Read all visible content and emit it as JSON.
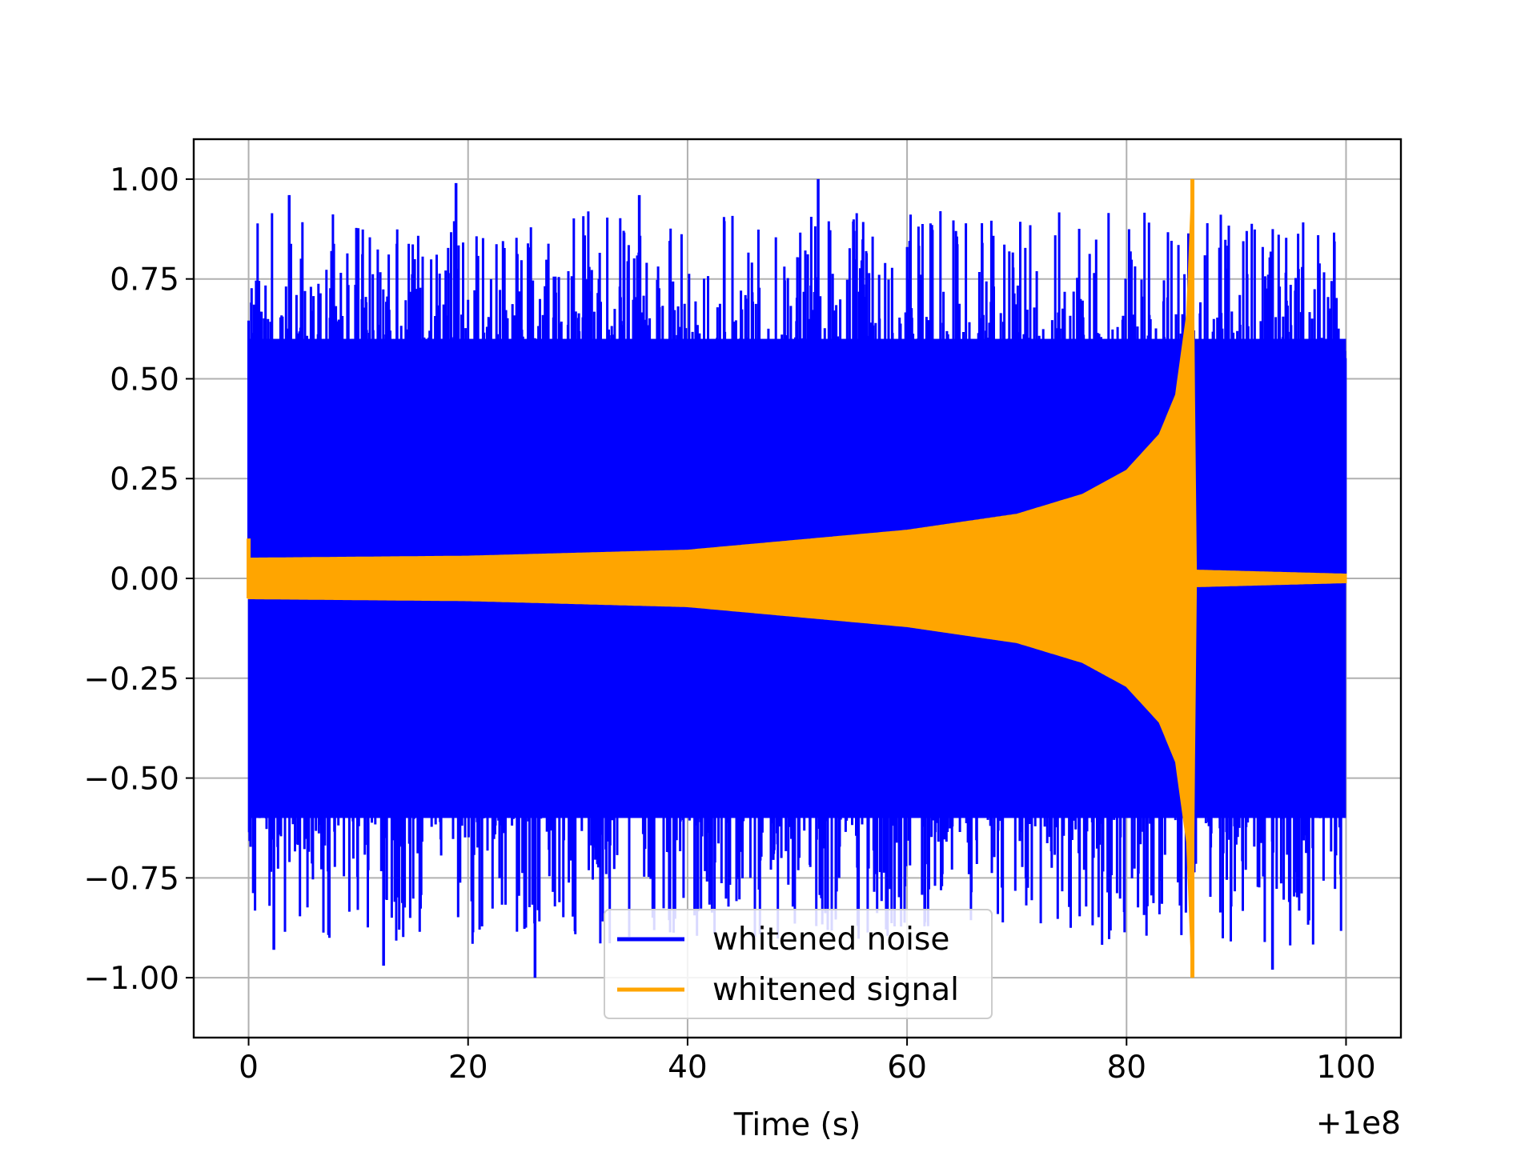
{
  "chart_data": {
    "type": "line",
    "title": "",
    "xlabel": "Time (s)",
    "ylabel": "",
    "x_offset_label": "+1e8",
    "xlim": [
      -5,
      105
    ],
    "ylim": [
      -1.15,
      1.1
    ],
    "x_ticks": [
      0,
      20,
      40,
      60,
      80,
      100
    ],
    "x_tick_labels": [
      "0",
      "20",
      "40",
      "60",
      "80",
      "100"
    ],
    "y_ticks": [
      1.0,
      0.75,
      0.5,
      0.25,
      0.0,
      -0.25,
      -0.5,
      -0.75,
      -1.0
    ],
    "y_tick_labels": [
      "1.00",
      "0.75",
      "0.50",
      "0.25",
      "0.00",
      "−0.25",
      "−0.50",
      "−0.75",
      "−1.00"
    ],
    "grid": true,
    "legend_position": "bottom-center",
    "series": [
      {
        "name": "whitened noise",
        "color": "#0000ff",
        "x_start": 0,
        "x_end": 100,
        "envelope_note": "dense noise, mostly within ±0.6, peaks up to ±1.00",
        "peaks": [
          {
            "x": 3.7,
            "y": 0.96
          },
          {
            "x": 18.9,
            "y": 0.99
          },
          {
            "x": 35.6,
            "y": 0.96
          },
          {
            "x": 51.9,
            "y": 1.0
          },
          {
            "x": 26.1,
            "y": -1.0
          },
          {
            "x": 12.3,
            "y": -0.97
          },
          {
            "x": 93.3,
            "y": -0.98
          },
          {
            "x": 2.3,
            "y": -0.93
          }
        ]
      },
      {
        "name": "whitened signal",
        "color": "#ffa500",
        "x_start": 0,
        "x_end": 100,
        "amplitude_envelope": [
          {
            "x": 0,
            "y": 0.05
          },
          {
            "x": 20,
            "y": 0.055
          },
          {
            "x": 40,
            "y": 0.07
          },
          {
            "x": 60,
            "y": 0.12
          },
          {
            "x": 70,
            "y": 0.16
          },
          {
            "x": 76,
            "y": 0.21
          },
          {
            "x": 80,
            "y": 0.27
          },
          {
            "x": 83,
            "y": 0.36
          },
          {
            "x": 84.5,
            "y": 0.46
          },
          {
            "x": 85.5,
            "y": 0.66
          },
          {
            "x": 86,
            "y": 1.0
          },
          {
            "x": 86.3,
            "y": 0.02
          },
          {
            "x": 100,
            "y": 0.01
          }
        ]
      }
    ]
  }
}
